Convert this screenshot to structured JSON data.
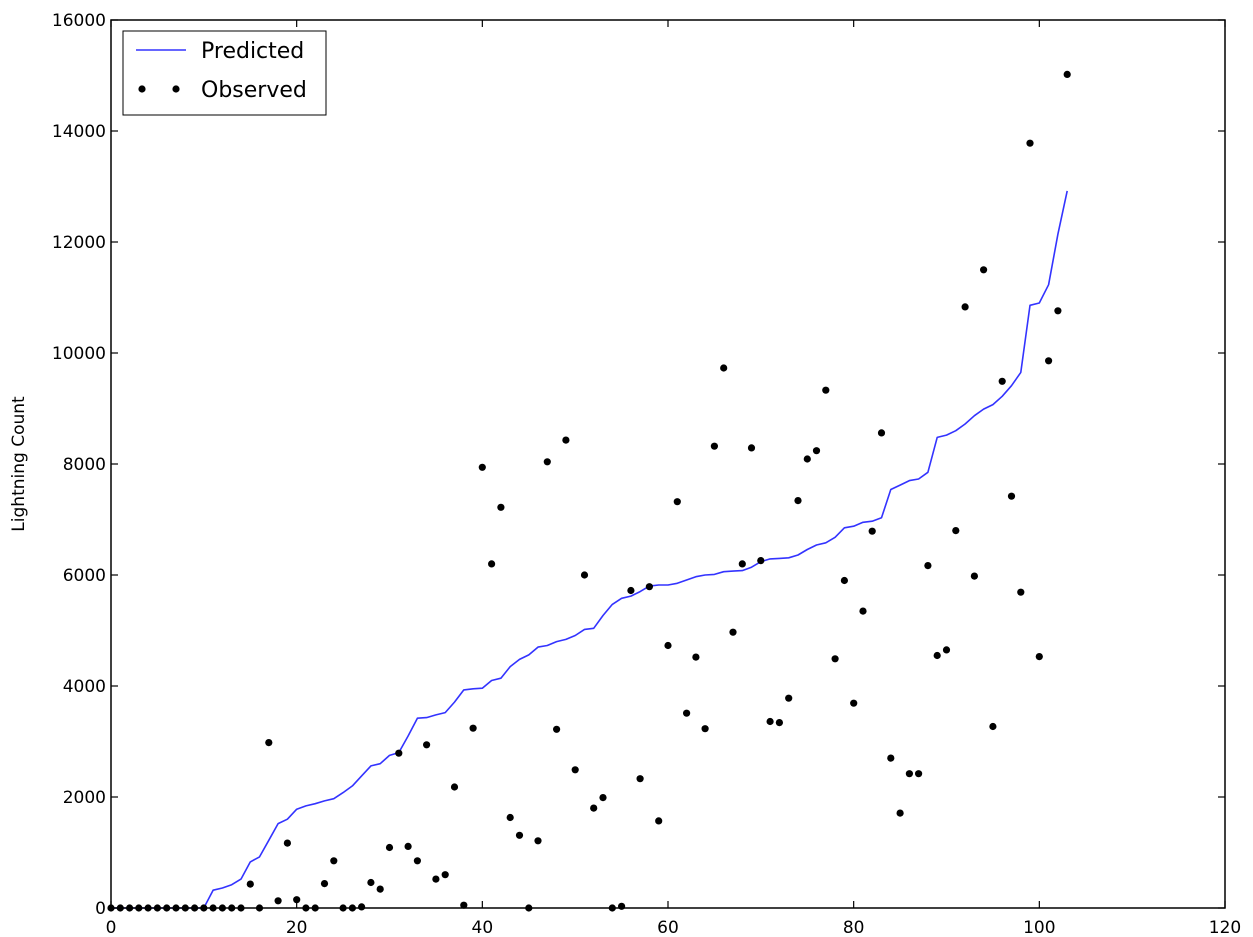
{
  "chart_data": {
    "type": "line",
    "title": "",
    "xlabel": "",
    "ylabel": "Lightning Count",
    "xlim": [
      0,
      120
    ],
    "ylim": [
      0,
      16000
    ],
    "xticks": [
      0,
      20,
      40,
      60,
      80,
      100,
      120
    ],
    "yticks": [
      0,
      2000,
      4000,
      6000,
      8000,
      10000,
      12000,
      14000,
      16000
    ],
    "grid": false,
    "legend_position": "top-left",
    "colors": {
      "predicted": "#3333ff",
      "observed": "#000000"
    },
    "series": [
      {
        "name": "Predicted",
        "kind": "line",
        "x": [
          0,
          1,
          2,
          3,
          4,
          5,
          6,
          7,
          8,
          9,
          10,
          11,
          12,
          13,
          14,
          15,
          16,
          17,
          18,
          19,
          20,
          21,
          22,
          23,
          24,
          25,
          26,
          27,
          28,
          29,
          30,
          31,
          32,
          33,
          34,
          35,
          36,
          37,
          38,
          39,
          40,
          41,
          42,
          43,
          44,
          45,
          46,
          47,
          48,
          49,
          50,
          51,
          52,
          53,
          54,
          55,
          56,
          57,
          58,
          59,
          60,
          61,
          62,
          63,
          64,
          65,
          66,
          67,
          68,
          69,
          70,
          71,
          72,
          73,
          74,
          75,
          76,
          77,
          78,
          79,
          80,
          81,
          82,
          83,
          84,
          85,
          86,
          87,
          88,
          89,
          90,
          91,
          92,
          93,
          94,
          95,
          96,
          97,
          98,
          99,
          100,
          101,
          102,
          103
        ],
        "y": [
          0,
          0,
          0,
          0,
          0,
          0,
          0,
          0,
          0,
          0,
          0,
          320,
          360,
          420,
          520,
          830,
          920,
          1220,
          1520,
          1600,
          1780,
          1840,
          1880,
          1930,
          1970,
          2080,
          2200,
          2380,
          2560,
          2600,
          2750,
          2800,
          3100,
          3420,
          3430,
          3480,
          3520,
          3710,
          3930,
          3950,
          3960,
          4100,
          4140,
          4350,
          4480,
          4560,
          4700,
          4730,
          4800,
          4840,
          4910,
          5020,
          5040,
          5270,
          5470,
          5580,
          5620,
          5700,
          5800,
          5820,
          5820,
          5850,
          5910,
          5970,
          6000,
          6010,
          6060,
          6070,
          6080,
          6140,
          6240,
          6290,
          6300,
          6310,
          6360,
          6460,
          6540,
          6580,
          6680,
          6850,
          6880,
          6950,
          6970,
          7030,
          7540,
          7620,
          7700,
          7730,
          7850,
          8480,
          8520,
          8600,
          8720,
          8870,
          8990,
          9070,
          9220,
          9410,
          9650,
          10860,
          10900,
          11230,
          12140,
          12920
        ]
      },
      {
        "name": "Observed",
        "kind": "scatter",
        "x": [
          0,
          1,
          2,
          3,
          4,
          5,
          6,
          7,
          8,
          9,
          10,
          11,
          12,
          13,
          14,
          15,
          16,
          17,
          18,
          19,
          20,
          21,
          22,
          23,
          24,
          25,
          26,
          27,
          28,
          29,
          30,
          31,
          32,
          33,
          34,
          35,
          36,
          37,
          38,
          39,
          40,
          41,
          42,
          43,
          44,
          45,
          46,
          47,
          48,
          49,
          50,
          51,
          52,
          53,
          54,
          55,
          56,
          57,
          58,
          59,
          60,
          61,
          62,
          63,
          64,
          65,
          66,
          67,
          68,
          69,
          70,
          71,
          72,
          73,
          74,
          75,
          76,
          77,
          78,
          79,
          80,
          81,
          82,
          83,
          84,
          85,
          86,
          87,
          88,
          89,
          90,
          91,
          92,
          93,
          94,
          95,
          96,
          97,
          98,
          99,
          100,
          101,
          102,
          103
        ],
        "y": [
          0,
          0,
          0,
          0,
          0,
          0,
          0,
          0,
          0,
          0,
          0,
          0,
          0,
          0,
          0,
          430,
          0,
          2980,
          130,
          1170,
          150,
          0,
          0,
          440,
          850,
          0,
          0,
          20,
          460,
          340,
          1090,
          2790,
          1110,
          850,
          2940,
          520,
          600,
          2180,
          50,
          3240,
          7940,
          6200,
          7220,
          1630,
          1310,
          0,
          1210,
          8040,
          3220,
          8430,
          2490,
          6000,
          1800,
          1990,
          0,
          30,
          5720,
          2330,
          5790,
          1570,
          4730,
          7320,
          3510,
          4520,
          3230,
          8320,
          9730,
          4970,
          6200,
          8290,
          6260,
          3360,
          3340,
          3780,
          7340,
          8090,
          8240,
          9330,
          4490,
          5900,
          3690,
          5350,
          6790,
          8560,
          2700,
          1710,
          2420,
          2420,
          6170,
          4550,
          4650,
          6800,
          10830,
          5980,
          11500,
          3270,
          9490,
          7420,
          5690,
          13780,
          4530,
          9860,
          10760,
          15020
        ]
      }
    ]
  }
}
